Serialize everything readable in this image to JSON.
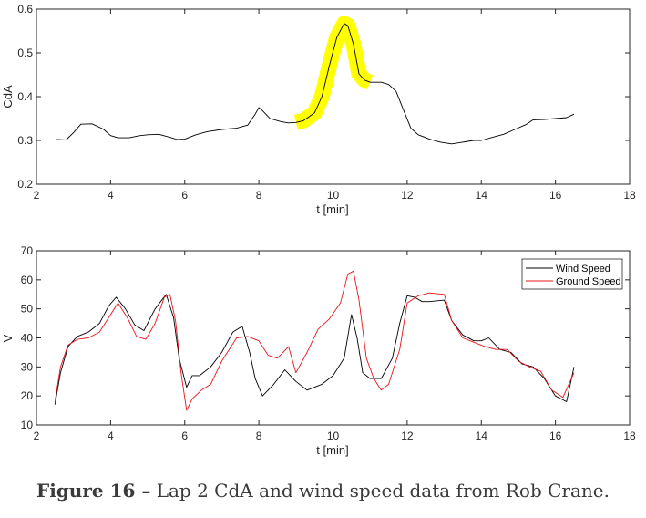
{
  "caption": {
    "lead": "Figure 16 –",
    "text": " Lap 2 CdA and wind speed data from Rob Crane."
  },
  "chart_data": [
    {
      "type": "line",
      "xlabel": "t [min]",
      "ylabel": "CdA",
      "xlim": [
        2,
        18
      ],
      "ylim": [
        0.2,
        0.6
      ],
      "xticks": [
        2,
        4,
        6,
        8,
        10,
        12,
        14,
        16,
        18
      ],
      "yticks": [
        0.2,
        0.3,
        0.4,
        0.5,
        0.6
      ],
      "ytick_labels": [
        "0.2",
        "0.3",
        "0.4",
        "0.5",
        "0.6"
      ],
      "highlight": {
        "color": "#ffff00",
        "x_range": [
          9.0,
          11.0
        ]
      },
      "series": [
        {
          "color": "#000000",
          "x": [
            2.55,
            2.8,
            3.0,
            3.2,
            3.5,
            3.8,
            4.0,
            4.2,
            4.5,
            4.8,
            5.0,
            5.3,
            5.6,
            5.8,
            6.0,
            6.3,
            6.6,
            7.0,
            7.4,
            7.7,
            7.9,
            8.0,
            8.1,
            8.3,
            8.6,
            8.8,
            9.0,
            9.2,
            9.5,
            9.7,
            9.9,
            10.1,
            10.3,
            10.4,
            10.55,
            10.7,
            10.85,
            11.0,
            11.3,
            11.5,
            11.7,
            11.9,
            12.1,
            12.3,
            12.6,
            12.9,
            13.2,
            13.5,
            13.8,
            14.0,
            14.3,
            14.6,
            14.9,
            15.2,
            15.4,
            15.7,
            16.0,
            16.3,
            16.5
          ],
          "y": [
            0.302,
            0.301,
            0.318,
            0.337,
            0.338,
            0.326,
            0.311,
            0.306,
            0.306,
            0.311,
            0.313,
            0.314,
            0.307,
            0.302,
            0.303,
            0.313,
            0.32,
            0.325,
            0.328,
            0.335,
            0.36,
            0.375,
            0.368,
            0.35,
            0.343,
            0.34,
            0.341,
            0.345,
            0.363,
            0.4,
            0.47,
            0.535,
            0.567,
            0.562,
            0.52,
            0.452,
            0.438,
            0.433,
            0.433,
            0.428,
            0.412,
            0.37,
            0.328,
            0.313,
            0.303,
            0.296,
            0.292,
            0.296,
            0.3,
            0.3,
            0.307,
            0.314,
            0.325,
            0.336,
            0.347,
            0.348,
            0.35,
            0.352,
            0.36
          ]
        }
      ]
    },
    {
      "type": "line",
      "xlabel": "t [min]",
      "ylabel": "V",
      "xlim": [
        2,
        18
      ],
      "ylim": [
        10,
        70
      ],
      "xticks": [
        2,
        4,
        6,
        8,
        10,
        12,
        14,
        16,
        18
      ],
      "yticks": [
        10,
        20,
        30,
        40,
        50,
        60,
        70
      ],
      "legend_position": "top-right",
      "series": [
        {
          "name": "Wind Speed",
          "color": "#000000",
          "x": [
            2.5,
            2.65,
            2.85,
            3.1,
            3.4,
            3.7,
            3.95,
            4.15,
            4.4,
            4.65,
            4.9,
            5.2,
            5.5,
            5.7,
            5.85,
            6.05,
            6.2,
            6.4,
            6.7,
            7.0,
            7.3,
            7.55,
            7.75,
            7.9,
            8.1,
            8.4,
            8.7,
            8.85,
            9.0,
            9.3,
            9.7,
            10.0,
            10.3,
            10.5,
            10.65,
            10.8,
            11.0,
            11.3,
            11.6,
            11.8,
            12.0,
            12.2,
            12.4,
            12.6,
            13.0,
            13.2,
            13.5,
            13.8,
            14.0,
            14.2,
            14.5,
            14.8,
            15.1,
            15.4,
            15.7,
            16.0,
            16.3,
            16.5
          ],
          "y": [
            17,
            28,
            37,
            40.5,
            42,
            45,
            51,
            54,
            50,
            44.5,
            42.5,
            50,
            55,
            47,
            33,
            23,
            27,
            27,
            30,
            35,
            42,
            44,
            35,
            26,
            20,
            24,
            29,
            27,
            25,
            22,
            24,
            27,
            33,
            48,
            40,
            28,
            26,
            26,
            33,
            45,
            54.5,
            54,
            52.5,
            52.5,
            53,
            46,
            41,
            39,
            39,
            40,
            36,
            35,
            31,
            30,
            26,
            20,
            18,
            30
          ]
        },
        {
          "name": "Ground Speed",
          "color": "#e8141b",
          "x": [
            2.5,
            2.65,
            2.85,
            3.1,
            3.4,
            3.7,
            3.95,
            4.2,
            4.45,
            4.7,
            4.95,
            5.2,
            5.45,
            5.6,
            5.75,
            5.9,
            6.05,
            6.2,
            6.45,
            6.7,
            7.0,
            7.4,
            7.7,
            8.0,
            8.25,
            8.5,
            8.8,
            9.0,
            9.3,
            9.6,
            9.9,
            10.2,
            10.4,
            10.55,
            10.7,
            10.9,
            11.1,
            11.3,
            11.5,
            11.8,
            12.0,
            12.3,
            12.6,
            13.0,
            13.2,
            13.5,
            13.8,
            14.1,
            14.4,
            14.7,
            15.0,
            15.3,
            15.6,
            15.9,
            16.2,
            16.5
          ],
          "y": [
            18,
            30,
            37.5,
            39.5,
            40,
            42,
            47,
            52,
            47,
            40.5,
            39.5,
            45,
            54,
            55,
            46,
            28,
            15,
            19,
            22,
            24,
            32,
            40,
            40.5,
            39,
            34,
            33,
            37,
            28,
            35,
            43,
            46.5,
            52,
            62,
            63,
            53,
            33,
            26,
            22,
            24,
            36,
            52,
            54.5,
            55.5,
            55,
            46,
            40,
            38.5,
            37,
            36,
            36,
            32,
            30,
            28.5,
            22,
            19.5,
            28
          ]
        }
      ]
    }
  ]
}
